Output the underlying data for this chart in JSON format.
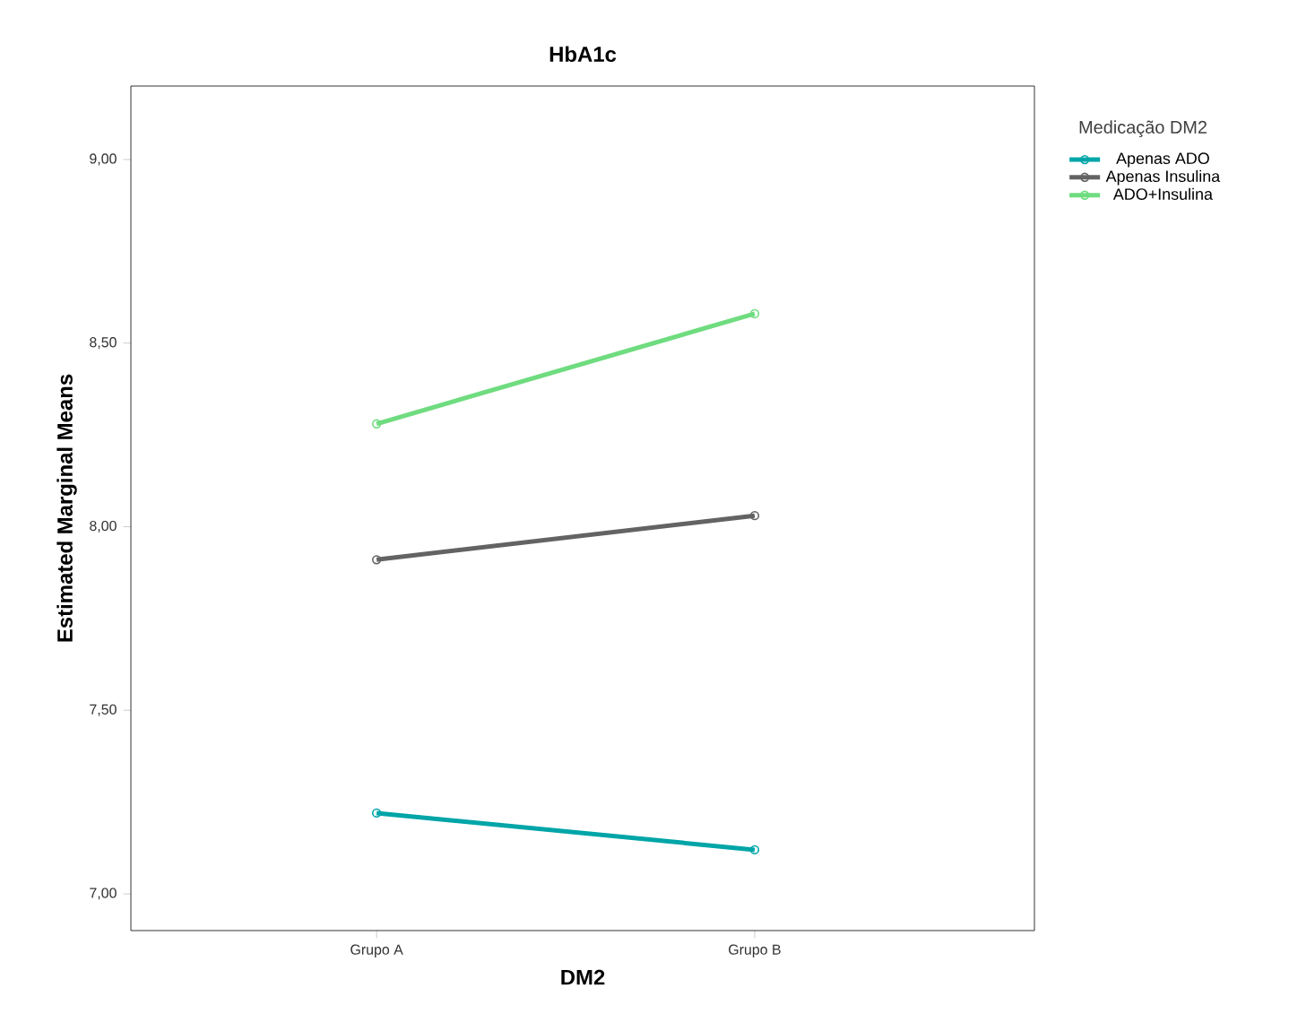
{
  "chart_data": {
    "type": "line",
    "title": "HbA1c",
    "xlabel": "DM2",
    "ylabel": "Estimated Marginal Means",
    "legend_title": "Medicação DM2",
    "categories": [
      "Grupo A",
      "Grupo B"
    ],
    "series": [
      {
        "name": "Apenas ADO",
        "color": "#00a5a8",
        "values": [
          7.22,
          7.12
        ]
      },
      {
        "name": "Apenas Insulina",
        "color": "#636363",
        "values": [
          7.91,
          8.03
        ]
      },
      {
        "name": "ADO+Insulina",
        "color": "#6fdc7f",
        "values": [
          8.28,
          8.58
        ]
      }
    ],
    "ylim": [
      6.9,
      9.2
    ],
    "yticks": [
      {
        "value": 7,
        "label": "7,00"
      },
      {
        "value": 7.5,
        "label": "7,50"
      },
      {
        "value": 8,
        "label": "8,00"
      },
      {
        "value": 8.5,
        "label": "8,50"
      },
      {
        "value": 9,
        "label": "9,00"
      }
    ],
    "grid": false,
    "legend": "top right",
    "marker": "circle",
    "line_style": "solid"
  }
}
